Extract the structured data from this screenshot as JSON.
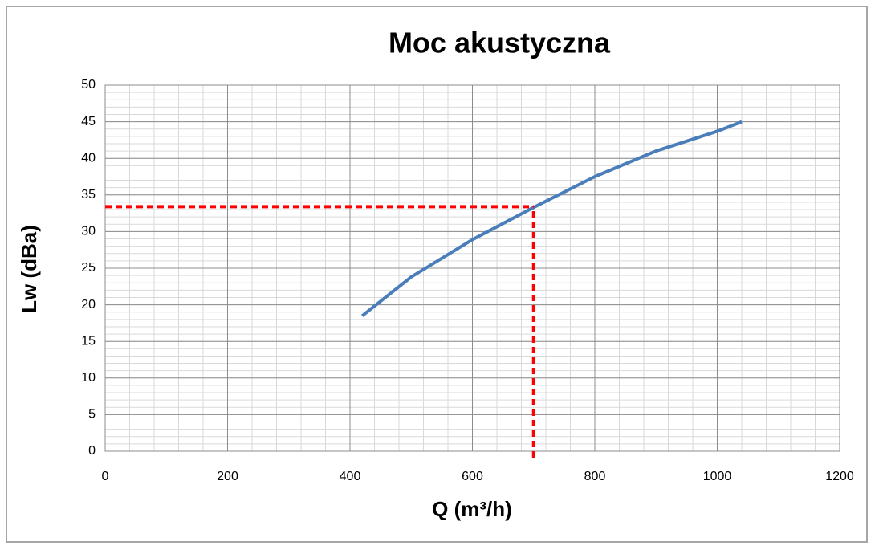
{
  "chart_data": {
    "type": "line",
    "title": "Moc akustyczna",
    "xlabel": "Q (m³/h)",
    "ylabel": "Lw (dBa)",
    "x": [
      420,
      500,
      600,
      700,
      800,
      900,
      1000,
      1040
    ],
    "series": [
      {
        "name": "Lw",
        "color": "#4a7ebb",
        "values": [
          18.5,
          23.8,
          28.9,
          33.3,
          37.5,
          41,
          43.7,
          45
        ]
      }
    ],
    "xlim": [
      0,
      1200
    ],
    "xticks": [
      0,
      200,
      400,
      600,
      800,
      1000,
      1200
    ],
    "ylim": [
      0,
      50
    ],
    "yticks": [
      0,
      5,
      10,
      15,
      20,
      25,
      30,
      35,
      40,
      45,
      50
    ],
    "grid": true,
    "minor_grid": {
      "x": 40,
      "y": 1
    },
    "reference": {
      "x": 700,
      "y": 33.4,
      "color": "#ff0000"
    }
  }
}
